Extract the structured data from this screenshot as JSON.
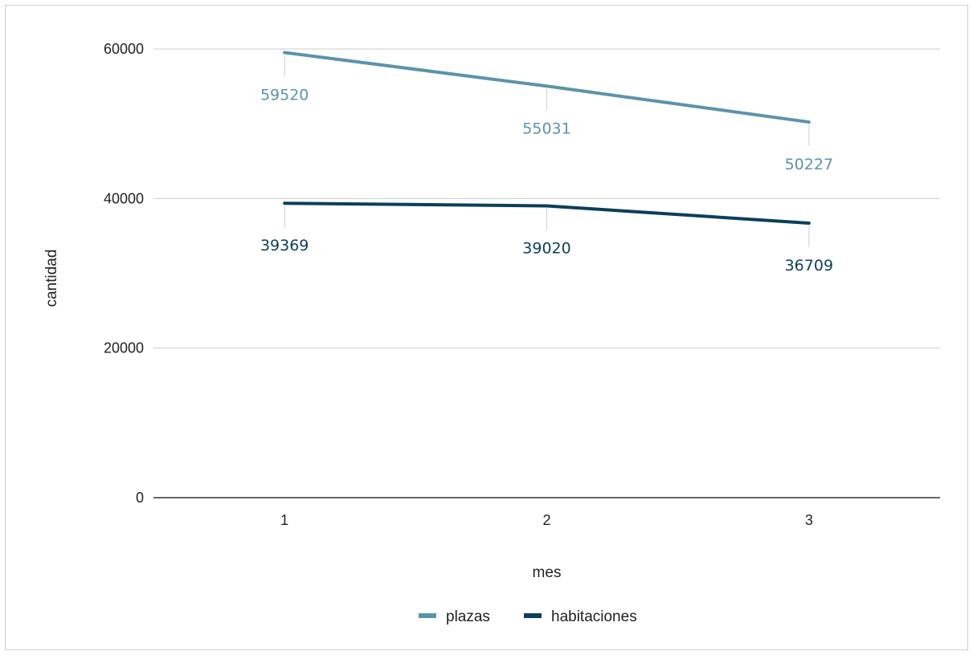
{
  "chart_data": {
    "type": "line",
    "title": "",
    "xlabel": "mes",
    "ylabel": "cantidad",
    "x": [
      "1",
      "2",
      "3"
    ],
    "yticks": [
      "0",
      "20000",
      "40000",
      "60000"
    ],
    "ylim": [
      0,
      60000
    ],
    "grid": true,
    "legend_position": "bottom",
    "series": [
      {
        "name": "plazas",
        "color": "#5b93ab",
        "values": [
          59520,
          55031,
          50227
        ],
        "labels": [
          "59520",
          "55031",
          "50227"
        ]
      },
      {
        "name": "habitaciones",
        "color": "#0b3f5a",
        "values": [
          39369,
          39020,
          36709
        ],
        "labels": [
          "39369",
          "39020",
          "36709"
        ]
      }
    ]
  }
}
